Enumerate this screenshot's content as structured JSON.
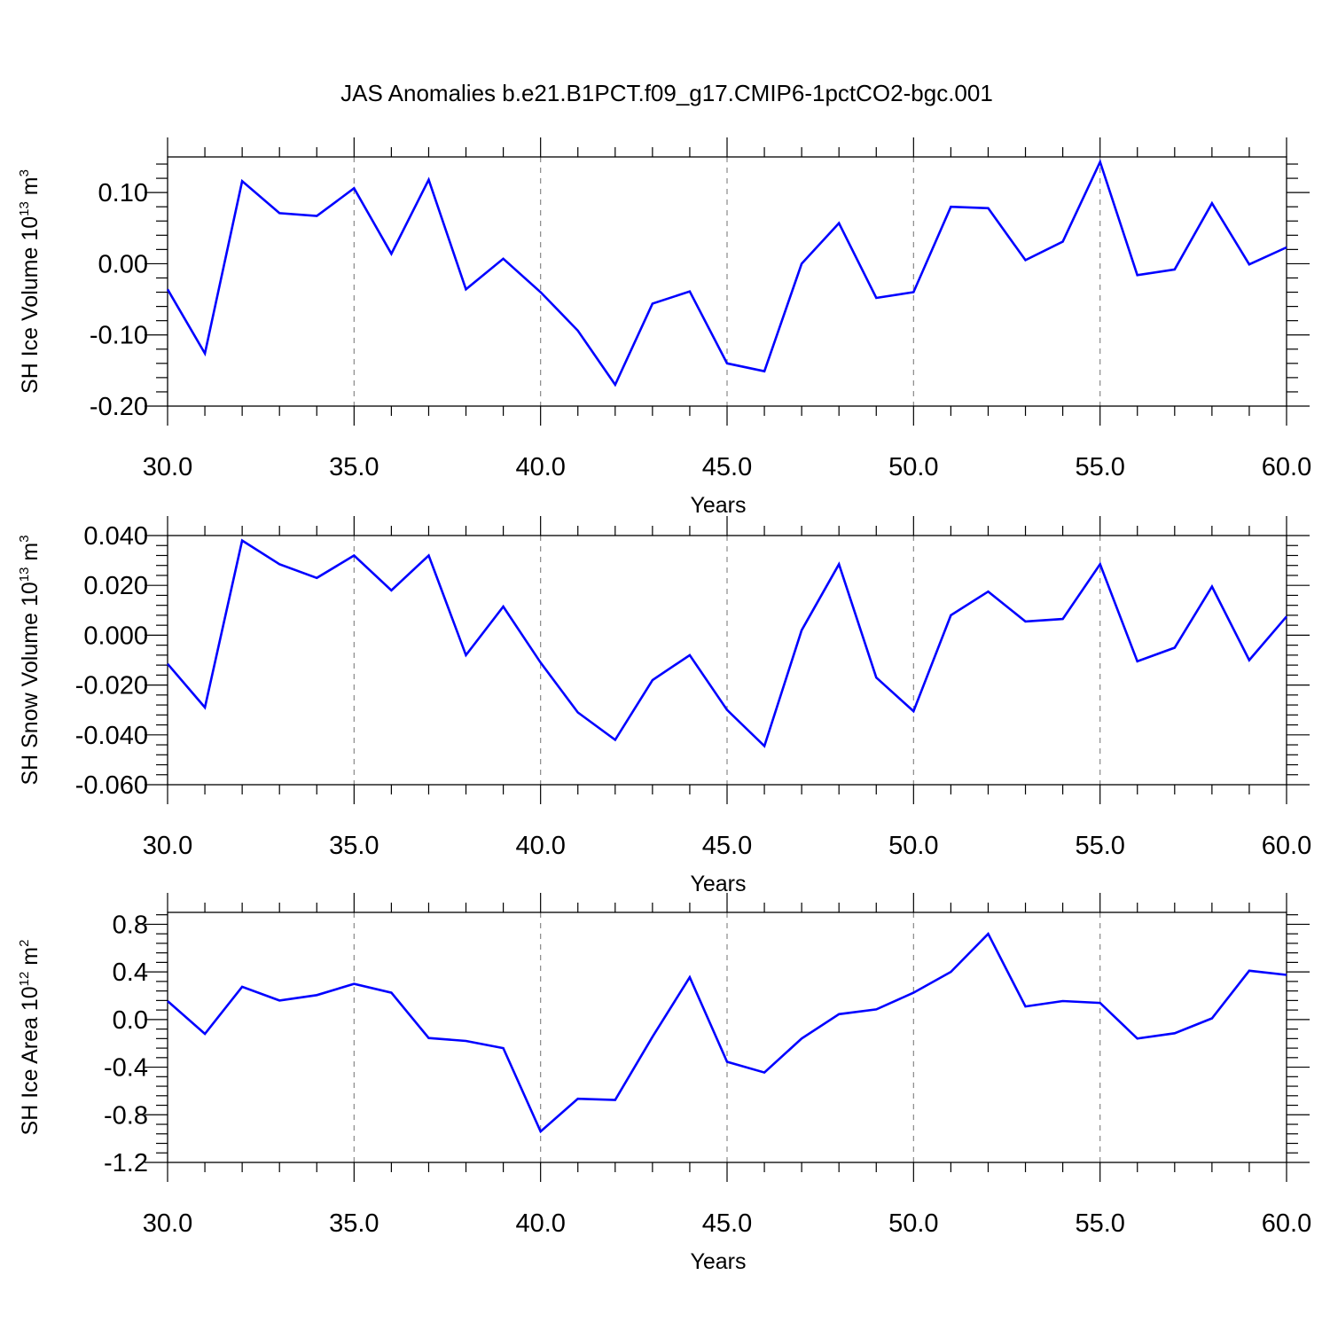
{
  "figure_title": "JAS Anomalies b.e21.B1PCT.f09_g17.CMIP6-1pctCO2-bgc.001",
  "chart_data": [
    {
      "type": "line",
      "xlabel": "Years",
      "ylabel": {
        "text": "SH Ice Volume 10",
        "sup": "13",
        "unit": " m",
        "unit_sup": "3"
      },
      "xlim": [
        30,
        60
      ],
      "ylim": [
        -0.2,
        0.15
      ],
      "yticks": [
        -0.2,
        -0.1,
        0.0,
        0.1
      ],
      "ytick_labels": [
        "-0.20",
        "-0.10",
        "0.00",
        "0.10"
      ],
      "xticks": [
        30,
        35,
        40,
        45,
        50,
        55,
        60
      ],
      "xtick_labels": [
        "30.0",
        "35.0",
        "40.0",
        "45.0",
        "50.0",
        "55.0",
        "60.0"
      ],
      "grid": "vertical dashed at major x ticks",
      "series": [
        {
          "color": "#0000ff",
          "x": [
            30,
            31,
            32,
            33,
            34,
            35,
            36,
            37,
            38,
            39,
            40,
            41,
            42,
            43,
            44,
            45,
            46,
            47,
            48,
            49,
            50,
            51,
            52,
            53,
            54,
            55,
            56,
            57,
            58,
            59,
            60
          ],
          "y": [
            -0.036,
            -0.126,
            0.116,
            0.071,
            0.067,
            0.106,
            0.014,
            0.118,
            -0.036,
            0.007,
            -0.04,
            -0.094,
            -0.17,
            -0.056,
            -0.039,
            -0.14,
            -0.151,
            0.0,
            0.057,
            -0.048,
            -0.04,
            0.08,
            0.078,
            0.005,
            0.031,
            0.143,
            -0.016,
            -0.008,
            0.085,
            -0.001,
            0.023
          ]
        }
      ]
    },
    {
      "type": "line",
      "xlabel": "Years",
      "ylabel": {
        "text": "SH Snow Volume 10",
        "sup": "13",
        "unit": " m",
        "unit_sup": "3"
      },
      "xlim": [
        30,
        60
      ],
      "ylim": [
        -0.06,
        0.04
      ],
      "yticks": [
        -0.06,
        -0.04,
        -0.02,
        0.0,
        0.02,
        0.04
      ],
      "ytick_labels": [
        "-0.060",
        "-0.040",
        "-0.020",
        "0.000",
        "0.020",
        "0.040"
      ],
      "xticks": [
        30,
        35,
        40,
        45,
        50,
        55,
        60
      ],
      "xtick_labels": [
        "30.0",
        "35.0",
        "40.0",
        "45.0",
        "50.0",
        "55.0",
        "60.0"
      ],
      "grid": "vertical dashed at major x ticks",
      "series": [
        {
          "color": "#0000ff",
          "x": [
            30,
            31,
            32,
            33,
            34,
            35,
            36,
            37,
            38,
            39,
            40,
            41,
            42,
            43,
            44,
            45,
            46,
            47,
            48,
            49,
            50,
            51,
            52,
            53,
            54,
            55,
            56,
            57,
            58,
            59,
            60
          ],
          "y": [
            -0.0115,
            -0.029,
            0.038,
            0.0285,
            0.023,
            0.032,
            0.018,
            0.032,
            -0.008,
            0.0115,
            -0.011,
            -0.031,
            -0.042,
            -0.018,
            -0.008,
            -0.03,
            -0.0445,
            0.002,
            0.0285,
            -0.017,
            -0.0305,
            0.008,
            0.0175,
            0.0055,
            0.0065,
            0.0285,
            -0.0105,
            -0.005,
            0.0195,
            -0.01,
            0.0075
          ]
        }
      ]
    },
    {
      "type": "line",
      "xlabel": "Years",
      "ylabel": {
        "text": "SH Ice Area 10",
        "sup": "12",
        "unit": " m",
        "unit_sup": "2"
      },
      "xlim": [
        30,
        60
      ],
      "ylim": [
        -1.2,
        0.9
      ],
      "yticks": [
        -1.2,
        -0.8,
        -0.4,
        0.0,
        0.4,
        0.8
      ],
      "ytick_labels": [
        "-1.2",
        "-0.8",
        "-0.4",
        "0.0",
        "0.4",
        "0.8"
      ],
      "xticks": [
        30,
        35,
        40,
        45,
        50,
        55,
        60
      ],
      "xtick_labels": [
        "30.0",
        "35.0",
        "40.0",
        "45.0",
        "50.0",
        "55.0",
        "60.0"
      ],
      "grid": "vertical dashed at major x ticks",
      "series": [
        {
          "color": "#0000ff",
          "x": [
            30,
            31,
            32,
            33,
            34,
            35,
            36,
            37,
            38,
            39,
            40,
            41,
            42,
            43,
            44,
            45,
            46,
            47,
            48,
            49,
            50,
            51,
            52,
            53,
            54,
            55,
            56,
            57,
            58,
            59,
            60
          ],
          "y": [
            0.155,
            -0.12,
            0.275,
            0.16,
            0.205,
            0.3,
            0.225,
            -0.155,
            -0.18,
            -0.24,
            -0.94,
            -0.665,
            -0.675,
            -0.145,
            0.355,
            -0.355,
            -0.445,
            -0.16,
            0.045,
            0.085,
            0.225,
            0.4,
            0.72,
            0.11,
            0.155,
            0.14,
            -0.16,
            -0.115,
            0.01,
            0.41,
            0.375
          ]
        }
      ]
    }
  ]
}
